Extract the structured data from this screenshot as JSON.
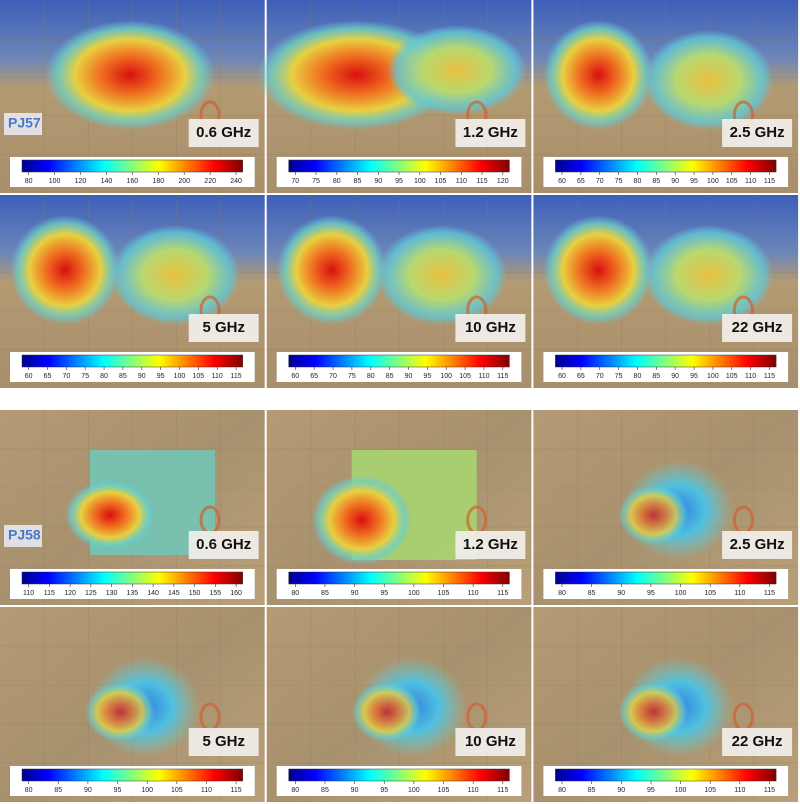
{
  "panels": [
    {
      "label": "PJ57",
      "maps": [
        {
          "frequency": "0.6 GHz",
          "colorbar_ticks": [
            80,
            100,
            120,
            140,
            160,
            180,
            200,
            220,
            240
          ]
        },
        {
          "frequency": "1.2 GHz",
          "colorbar_ticks": [
            70,
            75,
            80,
            85,
            90,
            95,
            100,
            105,
            110,
            115,
            120
          ]
        },
        {
          "frequency": "2.5 GHz",
          "colorbar_ticks": [
            60,
            65,
            70,
            75,
            80,
            85,
            90,
            95,
            100,
            105,
            110,
            115
          ]
        },
        {
          "frequency": "5 GHz",
          "colorbar_ticks": [
            60,
            65,
            70,
            75,
            80,
            85,
            90,
            95,
            100,
            105,
            110,
            115
          ]
        },
        {
          "frequency": "10 GHz",
          "colorbar_ticks": [
            60,
            65,
            70,
            75,
            80,
            85,
            90,
            95,
            100,
            105,
            110,
            115
          ]
        },
        {
          "frequency": "22 GHz",
          "colorbar_ticks": [
            60,
            65,
            70,
            75,
            80,
            85,
            90,
            95,
            100,
            105,
            110,
            115
          ]
        }
      ]
    },
    {
      "label": "PJ58",
      "maps": [
        {
          "frequency": "0.6 GHz",
          "colorbar_ticks": [
            110,
            115,
            120,
            125,
            130,
            135,
            140,
            145,
            150,
            155,
            160
          ]
        },
        {
          "frequency": "1.2 GHz",
          "colorbar_ticks": [
            80,
            85,
            90,
            95,
            100,
            105,
            110,
            115
          ]
        },
        {
          "frequency": "2.5 GHz",
          "colorbar_ticks": [
            80,
            85,
            90,
            95,
            100,
            105,
            110,
            115
          ]
        },
        {
          "frequency": "5 GHz",
          "colorbar_ticks": [
            80,
            85,
            90,
            95,
            100,
            105,
            110,
            115
          ]
        },
        {
          "frequency": "10 GHz",
          "colorbar_ticks": [
            80,
            85,
            90,
            95,
            100,
            105,
            110,
            115
          ]
        },
        {
          "frequency": "22 GHz",
          "colorbar_ticks": [
            80,
            85,
            90,
            95,
            100,
            105,
            110,
            115
          ]
        }
      ]
    }
  ]
}
